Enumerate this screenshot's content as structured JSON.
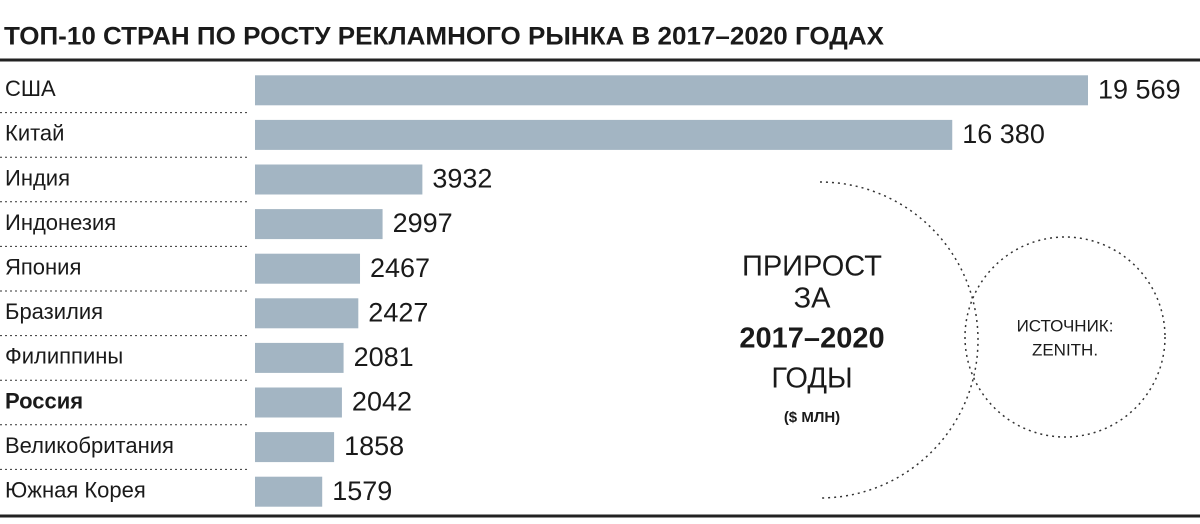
{
  "chart_data": {
    "type": "bar",
    "orientation": "horizontal",
    "title": "ТОП-10 СТРАН ПО РОСТУ РЕКЛАМНОГО РЫНКА В 2017–2020 ГОДАХ",
    "categories": [
      "США",
      "Китай",
      "Индия",
      "Индонезия",
      "Япония",
      "Бразилия",
      "Филиппины",
      "Россия",
      "Великобритания",
      "Южная Корея"
    ],
    "values": [
      19569,
      16380,
      3932,
      2997,
      2467,
      2427,
      2081,
      2042,
      1858,
      1579
    ],
    "value_labels": [
      "19 569",
      "16 380",
      "3932",
      "2997",
      "2467",
      "2427",
      "2081",
      "2042",
      "1858",
      "1579"
    ],
    "color": "#a3b5c3",
    "highlight": "Россия",
    "annotation": [
      "ПРИРОСТ",
      "ЗА",
      "2017–2020",
      "ГОДЫ",
      "($ МЛН)"
    ],
    "source": [
      "ИСТОЧНИК:",
      "ZENITH."
    ]
  }
}
